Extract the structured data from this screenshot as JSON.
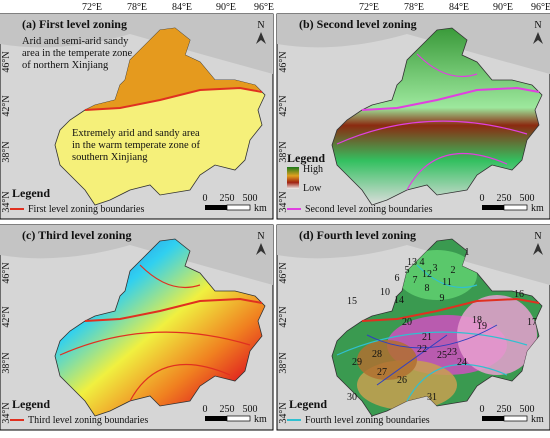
{
  "lon_labels": [
    "72°E",
    "78°E",
    "84°E",
    "90°E",
    "96°E"
  ],
  "lat_labels": [
    "46°N",
    "42°N",
    "38°N",
    "34°N"
  ],
  "scale": {
    "labels": [
      "0",
      "250",
      "500"
    ],
    "unit": "km"
  },
  "north": "N",
  "panels": [
    {
      "title": "(a) First level zoning",
      "legend": "Legend",
      "boundary": "First level zoning boundaries",
      "boundary_color": "#e03020",
      "annotations": [
        [
          "Arid and semi-arid sandy",
          "area in the temperate zone",
          "of northern Xinjiang"
        ],
        [
          "Extremely arid and sandy area",
          "in the warm temperate zone of",
          "southern Xinjiang"
        ]
      ]
    },
    {
      "title": "(b) Second level zoning",
      "legend": "Legend",
      "high": "High",
      "low": "Low",
      "boundary": "Second level zoning boundaries",
      "boundary_color": "#e040e0"
    },
    {
      "title": "(c) Third level zoning",
      "legend": "Legend",
      "boundary": "Third level zoning boundaries",
      "boundary_color": "#e03020"
    },
    {
      "title": "(d) Fourth level zoning",
      "legend": "Legend",
      "boundary": "Fourth level zoning boundaries",
      "boundary_color": "#30c0d0",
      "zones": [
        "1",
        "2",
        "3",
        "4",
        "5",
        "6",
        "7",
        "8",
        "9",
        "10",
        "11",
        "12",
        "13",
        "14",
        "15",
        "16",
        "17",
        "18",
        "19",
        "20",
        "21",
        "22",
        "23",
        "24",
        "25",
        "26",
        "27",
        "28",
        "29",
        "30",
        "31"
      ]
    }
  ]
}
